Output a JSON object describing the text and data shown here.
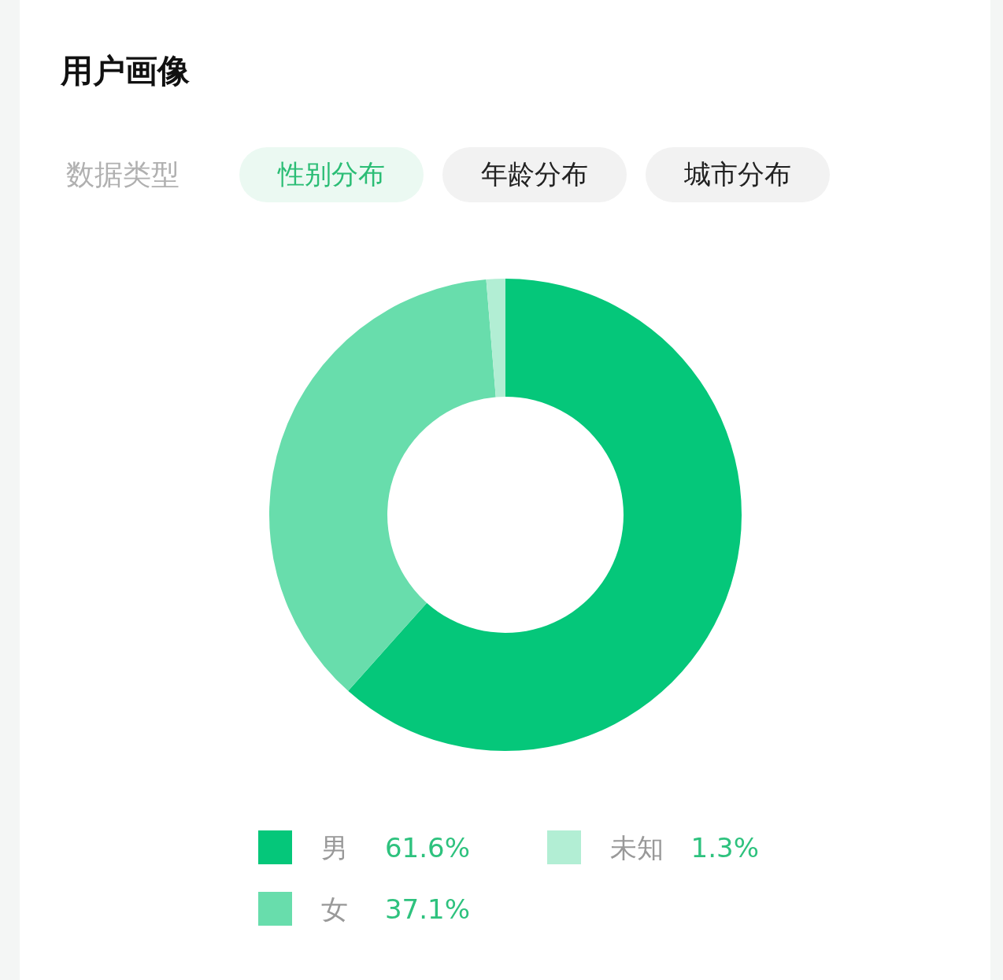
{
  "chart_data": {
    "type": "donut",
    "title": "用户画像",
    "subtitle": "数据类型",
    "annotations": [
      "性别分布",
      "年龄分布",
      "城市分布"
    ],
    "categories": [
      "男",
      "女",
      "未知"
    ],
    "values": [
      61.6,
      37.1,
      1.3
    ],
    "colors": [
      "#05c77a",
      "#68ddac",
      "#b2eed4"
    ],
    "value_labels": [
      "61.6%",
      "37.1%",
      "1.3%"
    ],
    "legend": "bottom"
  }
}
